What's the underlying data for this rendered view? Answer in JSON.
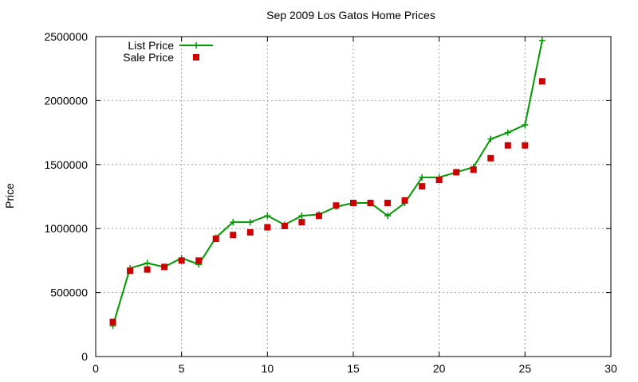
{
  "chart_data": {
    "type": "line",
    "title": "Sep 2009 Los Gatos Home Prices",
    "xlabel": "",
    "ylabel": "Price",
    "xlim": [
      0,
      30
    ],
    "ylim": [
      0,
      2500000
    ],
    "xticks": [
      "0",
      "5",
      "10",
      "15",
      "20",
      "25",
      "30"
    ],
    "yticks": [
      "0",
      "500000",
      "1000000",
      "1500000",
      "2000000",
      "2500000"
    ],
    "grid": true,
    "legend_position": "top-left",
    "series": [
      {
        "name": "List Price",
        "style": "line+cross",
        "color": "#009900",
        "x": [
          1,
          2,
          3,
          4,
          5,
          6,
          7,
          8,
          9,
          10,
          11,
          12,
          13,
          14,
          15,
          16,
          17,
          18,
          19,
          20,
          21,
          22,
          23,
          24,
          25,
          26
        ],
        "values": [
          240000,
          690000,
          730000,
          700000,
          770000,
          720000,
          930000,
          1050000,
          1050000,
          1100000,
          1030000,
          1100000,
          1110000,
          1170000,
          1200000,
          1200000,
          1100000,
          1200000,
          1400000,
          1400000,
          1440000,
          1480000,
          1700000,
          1750000,
          1810000,
          2470000
        ]
      },
      {
        "name": "Sale Price",
        "style": "square",
        "color": "#cc0000",
        "x": [
          1,
          2,
          3,
          4,
          5,
          6,
          7,
          8,
          9,
          10,
          11,
          12,
          13,
          14,
          15,
          16,
          17,
          18,
          19,
          20,
          21,
          22,
          23,
          24,
          25,
          26
        ],
        "values": [
          270000,
          670000,
          680000,
          700000,
          750000,
          750000,
          920000,
          950000,
          970000,
          1010000,
          1020000,
          1050000,
          1100000,
          1180000,
          1200000,
          1200000,
          1200000,
          1220000,
          1330000,
          1380000,
          1440000,
          1460000,
          1550000,
          1650000,
          1650000,
          2150000
        ]
      }
    ]
  }
}
